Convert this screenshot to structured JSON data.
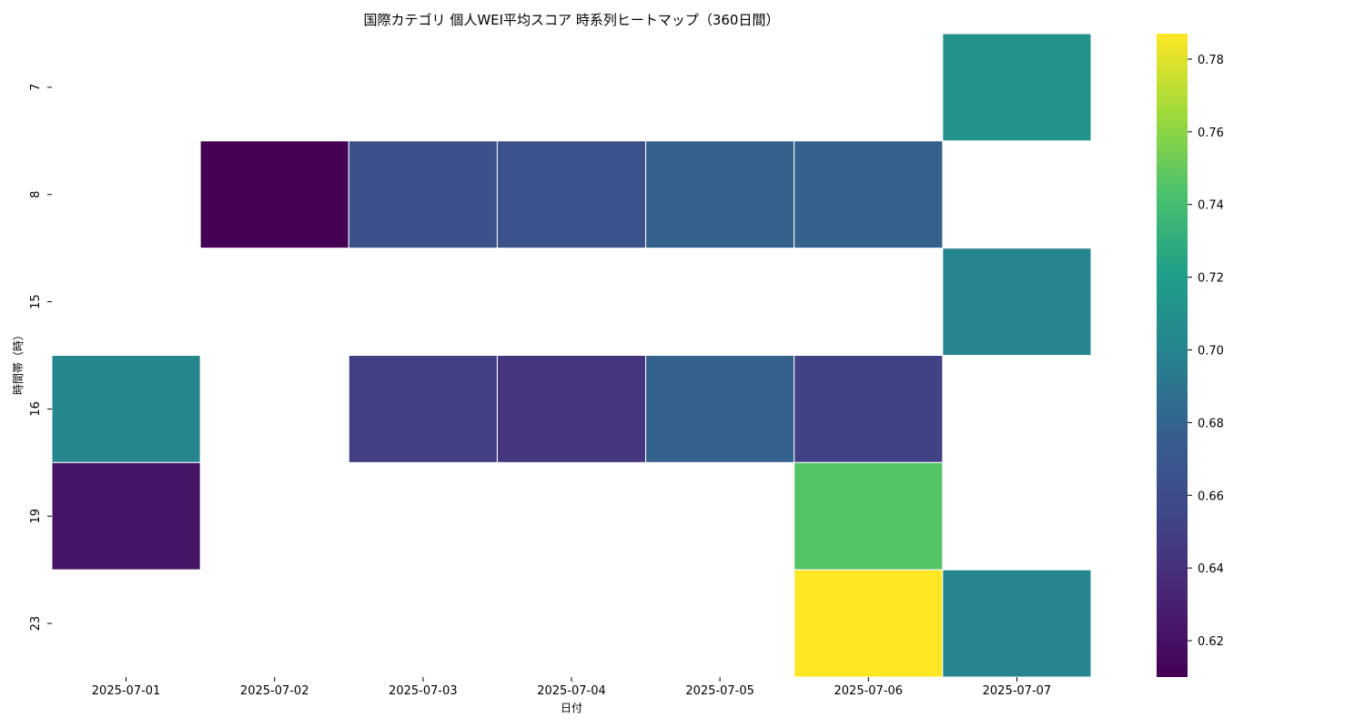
{
  "chart_data": {
    "type": "heatmap",
    "title": "国際カテゴリ 個人WEI平均スコア 時系列ヒートマップ（360日間）",
    "xlabel": "日付",
    "ylabel": "時間帯（時）",
    "x_categories": [
      "2025-07-01",
      "2025-07-02",
      "2025-07-03",
      "2025-07-04",
      "2025-07-05",
      "2025-07-06",
      "2025-07-07"
    ],
    "y_categories": [
      "7",
      "8",
      "15",
      "16",
      "19",
      "23"
    ],
    "values": [
      [
        null,
        null,
        null,
        null,
        null,
        null,
        0.711
      ],
      [
        null,
        0.61,
        0.664,
        0.665,
        0.679,
        0.678,
        null
      ],
      [
        null,
        null,
        null,
        null,
        null,
        null,
        0.7
      ],
      [
        0.702,
        null,
        0.65,
        0.643,
        0.679,
        0.651,
        null
      ],
      [
        0.622,
        null,
        null,
        null,
        null,
        0.745,
        null
      ],
      [
        null,
        null,
        null,
        null,
        null,
        0.787,
        0.7
      ]
    ],
    "colormap": "viridis",
    "vmin": 0.61,
    "vmax": 0.787,
    "colorbar_ticks": [
      "0.62",
      "0.64",
      "0.66",
      "0.68",
      "0.70",
      "0.72",
      "0.74",
      "0.76",
      "0.78"
    ],
    "grid": false
  }
}
